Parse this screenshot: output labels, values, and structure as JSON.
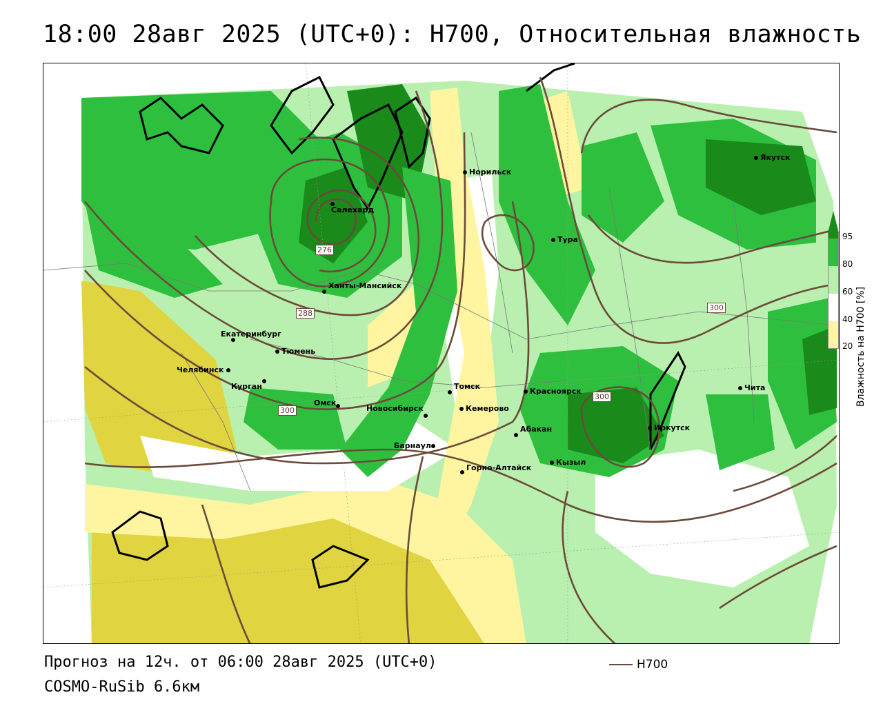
{
  "header": {
    "title": "18:00 28авг 2025 (UTC+0): H700, Относительная влажность"
  },
  "footer": {
    "forecast": "Прогноз на 12ч. от 06:00 28авг 2025 (UTC+0)",
    "model": "COSMO-RuSib 6.6км",
    "line_legend": "H700"
  },
  "colorbar": {
    "title": "Влажность на H700 [%]",
    "ticks": [
      "95",
      "80",
      "60",
      "40",
      "20"
    ],
    "colors": {
      "above95": "#1a8a1a",
      "80_95": "#2fbf3f",
      "60_80": "#b9f0b0",
      "40_60": "#ffffff",
      "20_40": "#fff5a0",
      "below20": "#e0d440"
    }
  },
  "contours": {
    "color": "#6b4a3a",
    "labels": [
      "276",
      "288",
      "300",
      "300",
      "300"
    ]
  },
  "cities": [
    {
      "name": "Якутск"
    },
    {
      "name": "Норильск"
    },
    {
      "name": "Салехард"
    },
    {
      "name": "Тура"
    },
    {
      "name": "Ханты-Мансийск"
    },
    {
      "name": "Екатеринбург"
    },
    {
      "name": "Тюмень"
    },
    {
      "name": "Челябинск"
    },
    {
      "name": "Курган"
    },
    {
      "name": "Омск"
    },
    {
      "name": "Новосибирск"
    },
    {
      "name": "Томск"
    },
    {
      "name": "Кемерово"
    },
    {
      "name": "Красноярск"
    },
    {
      "name": "Абакан"
    },
    {
      "name": "Иркутск"
    },
    {
      "name": "Чита"
    },
    {
      "name": "Барнаул"
    },
    {
      "name": "Горно-Алтайск"
    },
    {
      "name": "Кызыл"
    }
  ]
}
